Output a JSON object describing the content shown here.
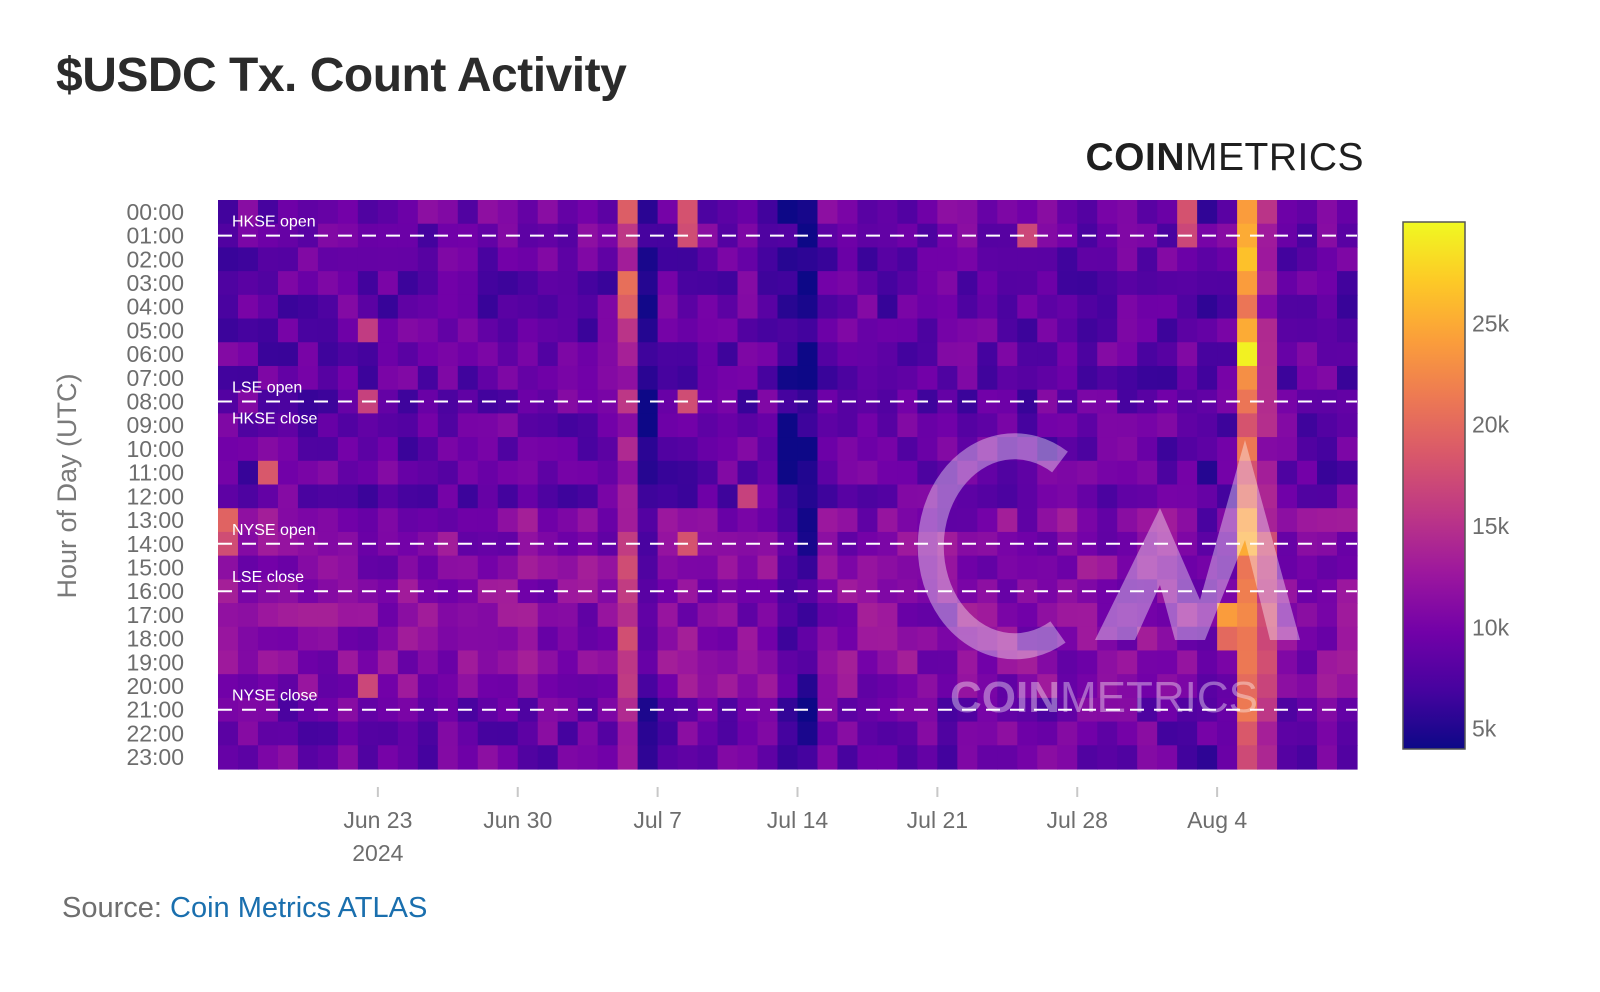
{
  "title": "$USDC Tx. Count Activity",
  "brand": {
    "coin": "COIN",
    "metrics": "METRICS"
  },
  "watermark": {
    "coin": "COIN",
    "metrics": "METRICS"
  },
  "source": {
    "label": "Source: ",
    "link_text": "Coin Metrics ATLAS"
  },
  "colors": {
    "scale": [
      "#0d0887",
      "#46039f",
      "#7201a8",
      "#9c179e",
      "#bd3786",
      "#d8576b",
      "#ed7953",
      "#fb9f3a",
      "#fdca26",
      "#f0f921"
    ],
    "title": "#2b2b2b",
    "link": "#1a6fae"
  },
  "chart_data": {
    "type": "heatmap",
    "title": "$USDC Tx. Count Activity",
    "ylabel": "Hour of Day (UTC)",
    "xlabel": "",
    "x_start": "2024-06-15",
    "x_end": "2024-08-11",
    "x_ticks": [
      {
        "date": "2024-06-23",
        "label": "Jun 23",
        "sublabel": "2024"
      },
      {
        "date": "2024-06-30",
        "label": "Jun 30",
        "sublabel": ""
      },
      {
        "date": "2024-07-07",
        "label": "Jul 7",
        "sublabel": ""
      },
      {
        "date": "2024-07-14",
        "label": "Jul 14",
        "sublabel": ""
      },
      {
        "date": "2024-07-21",
        "label": "Jul 21",
        "sublabel": ""
      },
      {
        "date": "2024-07-28",
        "label": "Jul 28",
        "sublabel": ""
      },
      {
        "date": "2024-08-04",
        "label": "Aug 4",
        "sublabel": ""
      }
    ],
    "y_labels": [
      "00:00",
      "01:00",
      "02:00",
      "03:00",
      "04:00",
      "05:00",
      "06:00",
      "07:00",
      "08:00",
      "09:00",
      "10:00",
      "11:00",
      "12:00",
      "13:00",
      "14:00",
      "15:00",
      "16:00",
      "17:00",
      "18:00",
      "19:00",
      "20:00",
      "21:00",
      "22:00",
      "23:00"
    ],
    "colorscale": {
      "min": 4000,
      "max": 30000,
      "ticks": [
        5000,
        10000,
        15000,
        20000,
        25000
      ],
      "tick_labels": [
        "5k",
        "10k",
        "15k",
        "20k",
        "25k"
      ]
    },
    "market_lines": [
      {
        "hour": 1,
        "labels": [
          "HKSE open"
        ]
      },
      {
        "hour": 8,
        "labels": [
          "LSE open",
          "HKSE close"
        ]
      },
      {
        "hour": 14,
        "labels": [
          "NYSE open"
        ]
      },
      {
        "hour": 16,
        "labels": [
          "LSE close"
        ]
      },
      {
        "hour": 21,
        "labels": [
          "NYSE close"
        ]
      }
    ],
    "base_level": 9500,
    "day_levels": [
      {
        "date": "2024-07-05",
        "level": 14000
      },
      {
        "date": "2024-07-06",
        "level": 5500
      },
      {
        "date": "2024-07-13",
        "level": 6000
      },
      {
        "date": "2024-07-14",
        "level": 5200
      },
      {
        "date": "2024-08-03",
        "level": 8000
      },
      {
        "date": "2024-08-05",
        "level": 20000
      },
      {
        "date": "2024-08-06",
        "level": 14000
      }
    ],
    "highlights": [
      {
        "date": "2024-08-05",
        "hour": 0,
        "value": 24000
      },
      {
        "date": "2024-08-05",
        "hour": 1,
        "value": 25000
      },
      {
        "date": "2024-08-05",
        "hour": 2,
        "value": 26500
      },
      {
        "date": "2024-08-05",
        "hour": 3,
        "value": 24000
      },
      {
        "date": "2024-08-05",
        "hour": 4,
        "value": 21000
      },
      {
        "date": "2024-08-05",
        "hour": 5,
        "value": 25000
      },
      {
        "date": "2024-08-05",
        "hour": 6,
        "value": 29500
      },
      {
        "date": "2024-08-05",
        "hour": 7,
        "value": 23000
      },
      {
        "date": "2024-08-05",
        "hour": 8,
        "value": 21000
      },
      {
        "date": "2024-08-05",
        "hour": 12,
        "value": 20000
      },
      {
        "date": "2024-08-05",
        "hour": 13,
        "value": 24000
      },
      {
        "date": "2024-08-05",
        "hour": 14,
        "value": 25000
      },
      {
        "date": "2024-08-05",
        "hour": 15,
        "value": 21000
      },
      {
        "date": "2024-08-04",
        "hour": 17,
        "value": 24000
      },
      {
        "date": "2024-08-04",
        "hour": 18,
        "value": 20000
      },
      {
        "date": "2024-08-02",
        "hour": 0,
        "value": 18000
      },
      {
        "date": "2024-08-02",
        "hour": 1,
        "value": 17000
      },
      {
        "date": "2024-07-05",
        "hour": 0,
        "value": 19000
      },
      {
        "date": "2024-07-05",
        "hour": 3,
        "value": 20500
      },
      {
        "date": "2024-07-05",
        "hour": 4,
        "value": 19000
      },
      {
        "date": "2024-07-05",
        "hour": 15,
        "value": 17500
      },
      {
        "date": "2024-07-08",
        "hour": 0,
        "value": 18000
      },
      {
        "date": "2024-07-08",
        "hour": 1,
        "value": 17500
      },
      {
        "date": "2024-07-08",
        "hour": 8,
        "value": 17500
      },
      {
        "date": "2024-07-08",
        "hour": 14,
        "value": 18000
      },
      {
        "date": "2024-06-17",
        "hour": 11,
        "value": 18500
      },
      {
        "date": "2024-06-15",
        "hour": 13,
        "value": 19500
      },
      {
        "date": "2024-06-15",
        "hour": 14,
        "value": 17500
      },
      {
        "date": "2024-06-22",
        "hour": 20,
        "value": 17000
      },
      {
        "date": "2024-06-22",
        "hour": 8,
        "value": 16500
      },
      {
        "date": "2024-06-22",
        "hour": 5,
        "value": 16000
      },
      {
        "date": "2024-07-25",
        "hour": 1,
        "value": 17000
      },
      {
        "date": "2024-07-11",
        "hour": 12,
        "value": 16500
      }
    ]
  }
}
